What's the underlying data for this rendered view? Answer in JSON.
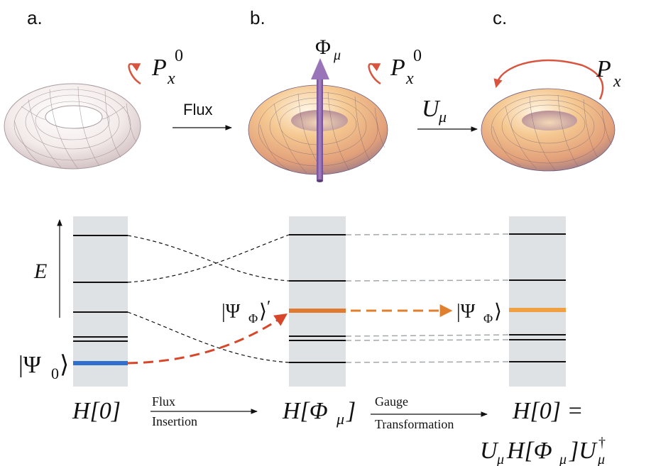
{
  "panels": {
    "a": {
      "label": "a.",
      "momentum_label": "P",
      "momentum_sub": "x",
      "momentum_sup": "0"
    },
    "b": {
      "label": "b.",
      "flux_label": "Φ",
      "flux_sub": "μ",
      "momentum_label": "P",
      "momentum_sub": "x",
      "momentum_sup": "0"
    },
    "c": {
      "label": "c.",
      "momentum_label": "P",
      "momentum_sub": "x"
    }
  },
  "top_arrows": {
    "flux": "Flux",
    "unitary": "U",
    "unitary_sub": "μ"
  },
  "spectrum": {
    "energy_axis": "E",
    "state_initial": "|Ψ₀⟩",
    "state_prime": "|Ψ_Φ⟩′",
    "state_final": "|Ψ_Φ⟩",
    "ket_left": "|Ψ",
    "ket_0_sub": "0",
    "ket_phi_sub": "Φ",
    "ket_right": "⟩",
    "prime": "′"
  },
  "bottom": {
    "h0": "H[0]",
    "h_phi_a": "H[Φ",
    "h_phi_sub": "μ",
    "h_phi_b": "]",
    "flux_insertion_1": "Flux",
    "flux_insertion_2": "Insertion",
    "gauge_1": "Gauge",
    "gauge_2": "Transformation",
    "h0_eq": "H[0] =",
    "transform_expr_a": "U",
    "transform_expr_sub1": "μ",
    "transform_expr_b": "H[Φ",
    "transform_expr_sub2": "μ",
    "transform_expr_c": "]U",
    "transform_expr_sub3": "μ",
    "transform_expr_sup": "†"
  },
  "colors": {
    "ground_state": "#2f6fd0",
    "excited_state": "#e08a3a",
    "transition": "#d8462a",
    "gauge_arrow": "#e07f2e",
    "band_bg": "#dfe2e4",
    "flux_arrow": "#8a5fa8",
    "momentum_arrow": "#d9543e"
  }
}
